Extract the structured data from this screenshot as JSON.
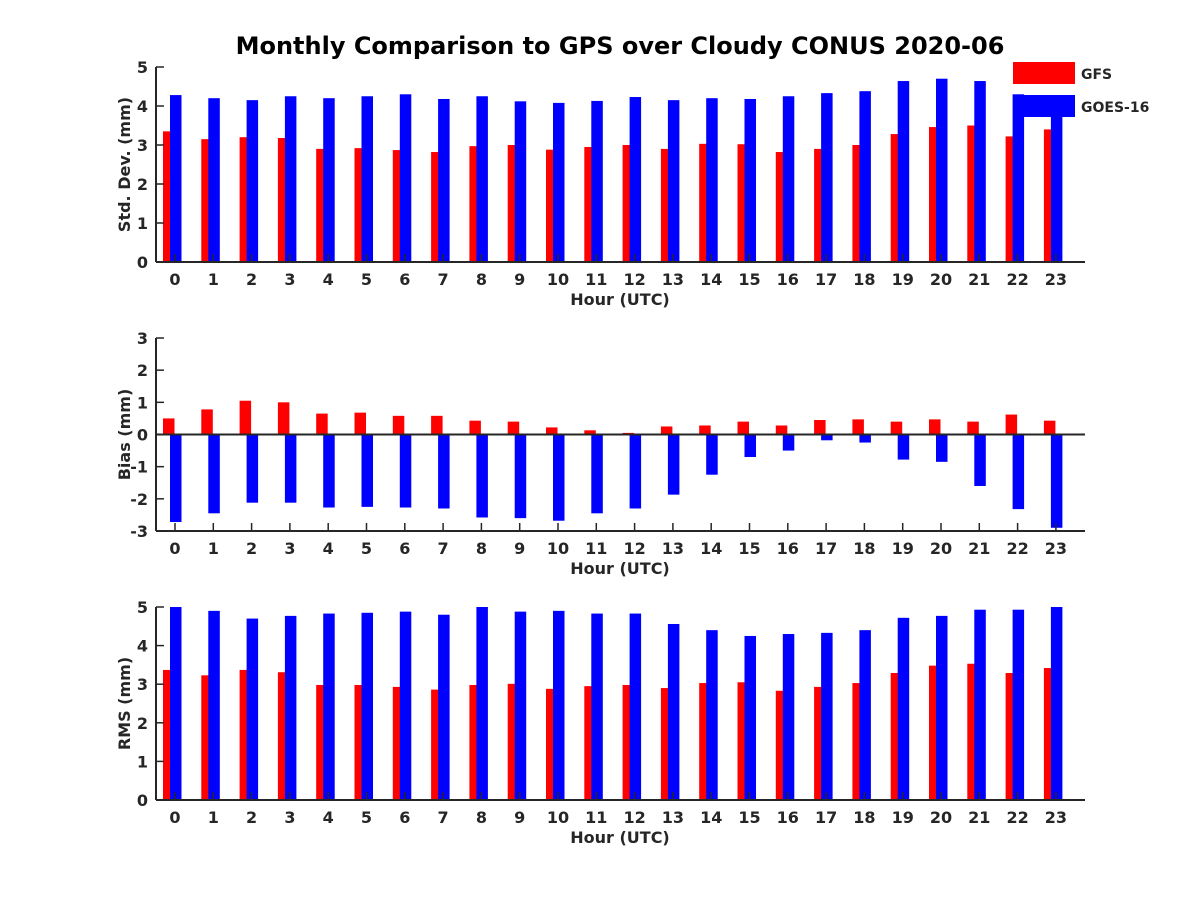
{
  "figure": {
    "title": "Monthly Comparison to GPS over Cloudy CONUS 2020-06",
    "legend": {
      "placement": "top-right",
      "entries": [
        {
          "name": "GFS",
          "color": "#ff0000"
        },
        {
          "name": "GOES-16",
          "color": "#0000ff"
        }
      ]
    }
  },
  "chart_data": [
    {
      "type": "bar",
      "xlabel": "Hour (UTC)",
      "ylabel": "Std. Dev. (mm)",
      "ylim": [
        0,
        5
      ],
      "yticks": [
        0,
        1,
        2,
        3,
        4,
        5
      ],
      "categories": [
        "0",
        "1",
        "2",
        "3",
        "4",
        "5",
        "6",
        "7",
        "8",
        "9",
        "10",
        "11",
        "12",
        "13",
        "14",
        "15",
        "16",
        "17",
        "18",
        "19",
        "20",
        "21",
        "22",
        "23"
      ],
      "series": [
        {
          "name": "GFS",
          "color": "#ff0000",
          "values": [
            3.35,
            3.15,
            3.2,
            3.18,
            2.9,
            2.92,
            2.87,
            2.82,
            2.97,
            3.0,
            2.88,
            2.95,
            3.0,
            2.9,
            3.03,
            3.02,
            2.82,
            2.9,
            3.0,
            3.28,
            3.46,
            3.5,
            3.22,
            3.4
          ]
        },
        {
          "name": "GOES-16",
          "color": "#0000ff",
          "values": [
            4.28,
            4.2,
            4.15,
            4.25,
            4.2,
            4.25,
            4.3,
            4.18,
            4.25,
            4.12,
            4.08,
            4.13,
            4.23,
            4.15,
            4.2,
            4.18,
            4.25,
            4.33,
            4.38,
            4.64,
            4.7,
            4.64,
            4.3,
            4.15
          ]
        }
      ]
    },
    {
      "type": "bar",
      "xlabel": "Hour (UTC)",
      "ylabel": "Bias (mm)",
      "ylim": [
        -3,
        3
      ],
      "yticks": [
        -3,
        -2,
        -1,
        0,
        1,
        2,
        3
      ],
      "categories": [
        "0",
        "1",
        "2",
        "3",
        "4",
        "5",
        "6",
        "7",
        "8",
        "9",
        "10",
        "11",
        "12",
        "13",
        "14",
        "15",
        "16",
        "17",
        "18",
        "19",
        "20",
        "21",
        "22",
        "23"
      ],
      "series": [
        {
          "name": "GFS",
          "color": "#ff0000",
          "values": [
            0.5,
            0.78,
            1.05,
            1.0,
            0.65,
            0.68,
            0.58,
            0.58,
            0.43,
            0.4,
            0.22,
            0.13,
            0.05,
            0.25,
            0.28,
            0.4,
            0.28,
            0.45,
            0.47,
            0.4,
            0.47,
            0.4,
            0.62,
            0.43
          ]
        },
        {
          "name": "GOES-16",
          "color": "#0000ff",
          "values": [
            -2.72,
            -2.45,
            -2.12,
            -2.12,
            -2.27,
            -2.25,
            -2.27,
            -2.3,
            -2.58,
            -2.6,
            -2.68,
            -2.45,
            -2.3,
            -1.87,
            -1.25,
            -0.7,
            -0.5,
            -0.18,
            -0.25,
            -0.78,
            -0.85,
            -1.6,
            -2.32,
            -2.9
          ]
        }
      ]
    },
    {
      "type": "bar",
      "xlabel": "Hour (UTC)",
      "ylabel": "RMS (mm)",
      "ylim": [
        0,
        5
      ],
      "yticks": [
        0,
        1,
        2,
        3,
        4,
        5
      ],
      "categories": [
        "0",
        "1",
        "2",
        "3",
        "4",
        "5",
        "6",
        "7",
        "8",
        "9",
        "10",
        "11",
        "12",
        "13",
        "14",
        "15",
        "16",
        "17",
        "18",
        "19",
        "20",
        "21",
        "22",
        "23"
      ],
      "series": [
        {
          "name": "GFS",
          "color": "#ff0000",
          "values": [
            3.37,
            3.23,
            3.37,
            3.31,
            2.98,
            2.98,
            2.93,
            2.86,
            2.98,
            3.01,
            2.88,
            2.95,
            2.98,
            2.9,
            3.03,
            3.05,
            2.83,
            2.93,
            3.03,
            3.29,
            3.48,
            3.53,
            3.29,
            3.42
          ]
        },
        {
          "name": "GOES-16",
          "color": "#0000ff",
          "values": [
            5.0,
            4.9,
            4.7,
            4.77,
            4.83,
            4.85,
            4.88,
            4.8,
            5.0,
            4.88,
            4.9,
            4.83,
            4.83,
            4.56,
            4.4,
            4.25,
            4.3,
            4.33,
            4.4,
            4.72,
            4.77,
            4.93,
            4.93,
            5.0
          ]
        }
      ]
    }
  ]
}
